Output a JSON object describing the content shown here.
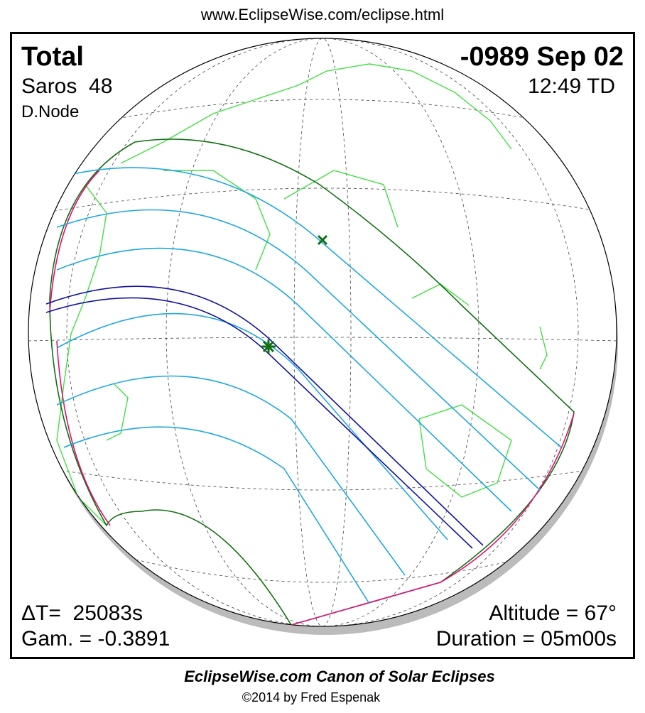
{
  "header": {
    "url": "www.EclipseWise.com/eclipse.html"
  },
  "eclipse": {
    "type": "Total",
    "date": "-0989 Sep 02",
    "saros": "Saros  48",
    "time": "12:49 TD",
    "node": "D.Node",
    "delta_t": "ΔT=  25083s",
    "gamma": "Gam. = -0.3891",
    "altitude": "Altitude = 67°",
    "duration": "Duration = 05m00s"
  },
  "footer": {
    "title": "EclipseWise.com Canon of Solar Eclipses",
    "copyright": "©2014 by Fred Espenak"
  }
}
